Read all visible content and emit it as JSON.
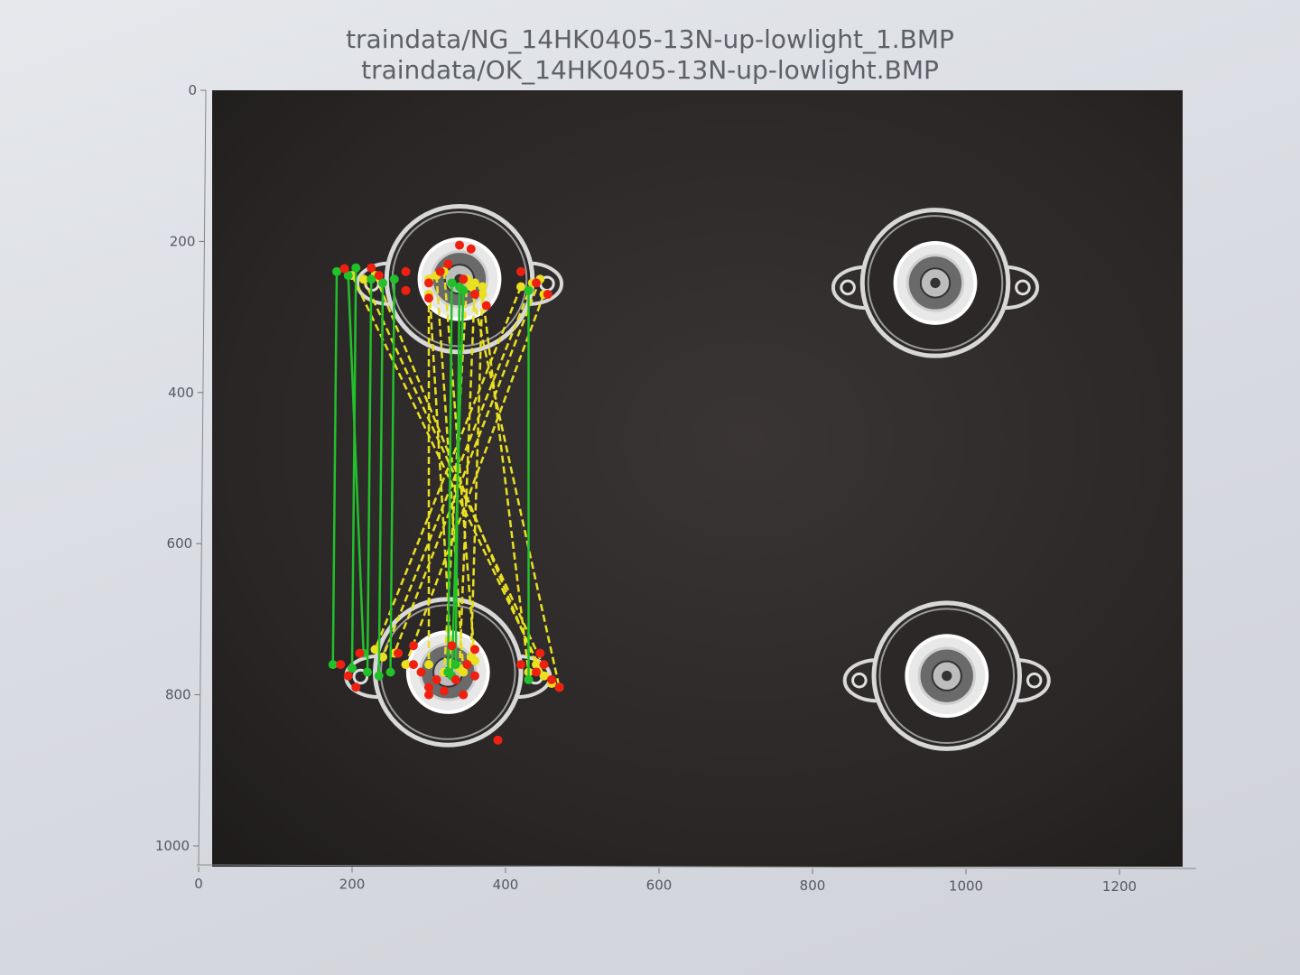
{
  "figure": {
    "title_line_1": "traindata/NG_14HK0405-13N-up-lowlight_1.BMP",
    "title_line_2": "traindata/OK_14HK0405-13N-up-lowlight.BMP"
  },
  "axes": {
    "x_ticks": [
      "0",
      "200",
      "400",
      "600",
      "800",
      "1000",
      "1200"
    ],
    "y_ticks": [
      "0",
      "200",
      "400",
      "600",
      "800",
      "1000"
    ],
    "x_range": [
      0,
      1280
    ],
    "y_range": [
      1020,
      0
    ]
  },
  "colors": {
    "background": "#d9dce2",
    "image_background": "#2a2727",
    "part_metal": "#d8d8d8",
    "match_good": "#22c02a",
    "match_bad": "#e8e020",
    "keypoint": "#f02010",
    "tick_text": "#555860"
  },
  "image_content": {
    "parts": [
      {
        "name": "ng-part-top-left",
        "cx": 340,
        "cy": 250,
        "r": 95
      },
      {
        "name": "ok-part-top-right",
        "cx": 960,
        "cy": 255,
        "r": 95
      },
      {
        "name": "ng-part-bottom-left",
        "cx": 325,
        "cy": 770,
        "r": 95
      },
      {
        "name": "ok-part-bottom-right",
        "cx": 975,
        "cy": 775,
        "r": 95
      }
    ],
    "matches_good": [
      [
        180,
        240,
        175,
        760
      ],
      [
        205,
        235,
        200,
        765
      ],
      [
        225,
        250,
        220,
        770
      ],
      [
        240,
        255,
        235,
        775
      ],
      [
        255,
        250,
        250,
        770
      ],
      [
        330,
        255,
        325,
        770
      ],
      [
        340,
        260,
        335,
        760
      ],
      [
        345,
        265,
        330,
        775
      ],
      [
        430,
        265,
        430,
        780
      ],
      [
        195,
        245,
        215,
        745
      ]
    ],
    "matches_bad": [
      [
        420,
        260,
        230,
        740
      ],
      [
        435,
        255,
        240,
        750
      ],
      [
        445,
        250,
        255,
        745
      ],
      [
        450,
        270,
        270,
        760
      ],
      [
        300,
        250,
        330,
        760
      ],
      [
        310,
        245,
        345,
        770
      ],
      [
        320,
        240,
        360,
        755
      ],
      [
        350,
        250,
        320,
        770
      ],
      [
        360,
        255,
        340,
        765
      ],
      [
        370,
        260,
        355,
        750
      ],
      [
        200,
        245,
        450,
        775
      ],
      [
        215,
        250,
        460,
        785
      ],
      [
        230,
        245,
        440,
        760
      ],
      [
        300,
        270,
        300,
        760
      ],
      [
        370,
        270,
        430,
        770
      ],
      [
        355,
        260,
        470,
        790
      ]
    ],
    "keypoints": [
      [
        190,
        236
      ],
      [
        225,
        235
      ],
      [
        235,
        245
      ],
      [
        270,
        240
      ],
      [
        300,
        255
      ],
      [
        315,
        240
      ],
      [
        325,
        230
      ],
      [
        340,
        205
      ],
      [
        355,
        210
      ],
      [
        345,
        250
      ],
      [
        360,
        270
      ],
      [
        375,
        285
      ],
      [
        420,
        240
      ],
      [
        440,
        255
      ],
      [
        455,
        270
      ],
      [
        270,
        265
      ],
      [
        300,
        275
      ],
      [
        185,
        760
      ],
      [
        195,
        775
      ],
      [
        205,
        790
      ],
      [
        210,
        745
      ],
      [
        260,
        745
      ],
      [
        280,
        760
      ],
      [
        290,
        770
      ],
      [
        300,
        790
      ],
      [
        310,
        780
      ],
      [
        320,
        795
      ],
      [
        335,
        780
      ],
      [
        350,
        760
      ],
      [
        360,
        775
      ],
      [
        345,
        800
      ],
      [
        300,
        800
      ],
      [
        420,
        760
      ],
      [
        440,
        770
      ],
      [
        460,
        780
      ],
      [
        450,
        760
      ],
      [
        470,
        790
      ],
      [
        445,
        745
      ],
      [
        390,
        860
      ],
      [
        280,
        735
      ],
      [
        330,
        735
      ],
      [
        360,
        740
      ]
    ]
  }
}
